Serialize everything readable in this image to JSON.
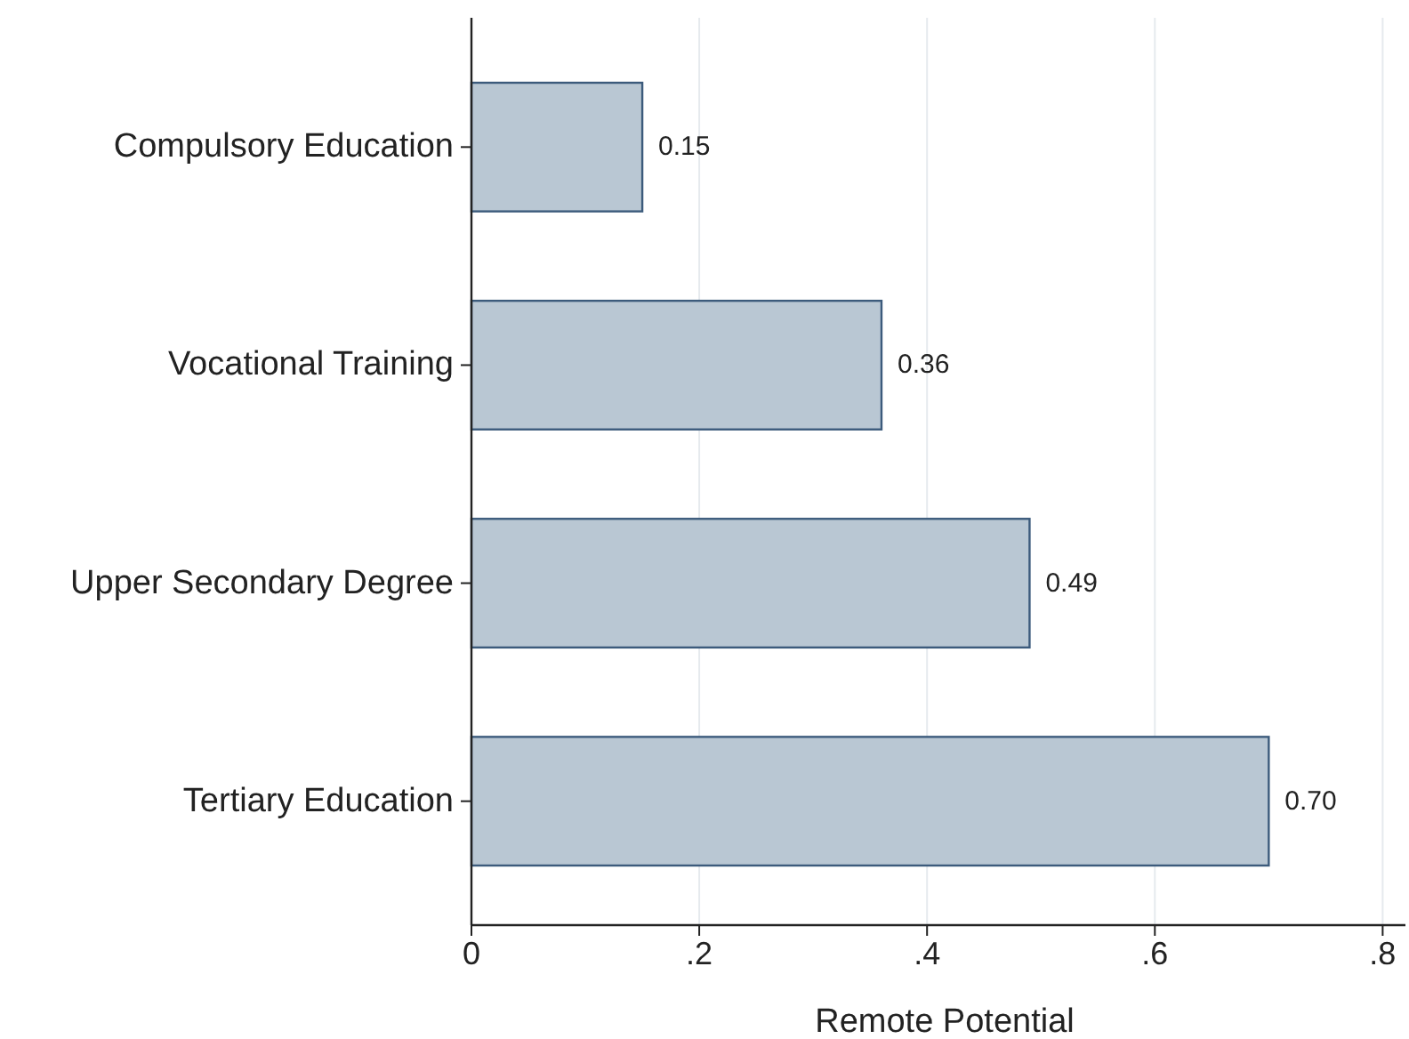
{
  "chart_data": {
    "type": "bar",
    "orientation": "horizontal",
    "xlabel": "Remote Potential",
    "categories": [
      "Compulsory Education",
      "Vocational Training",
      "Upper Secondary Degree",
      "Tertiary Education"
    ],
    "values": [
      0.15,
      0.36,
      0.49,
      0.7
    ],
    "value_labels": [
      "0.15",
      "0.36",
      "0.49",
      "0.70"
    ],
    "color": "#b9c7d3",
    "xlim": [
      0,
      0.82
    ],
    "xticks": [
      0,
      {
        "value": 0.2,
        "label": ".2"
      },
      {
        "value": 0.4,
        "label": ".4"
      },
      {
        "value": 0.6,
        "label": ".6"
      },
      {
        "value": 0.8,
        "label": ".8"
      }
    ],
    "grid": "x"
  }
}
